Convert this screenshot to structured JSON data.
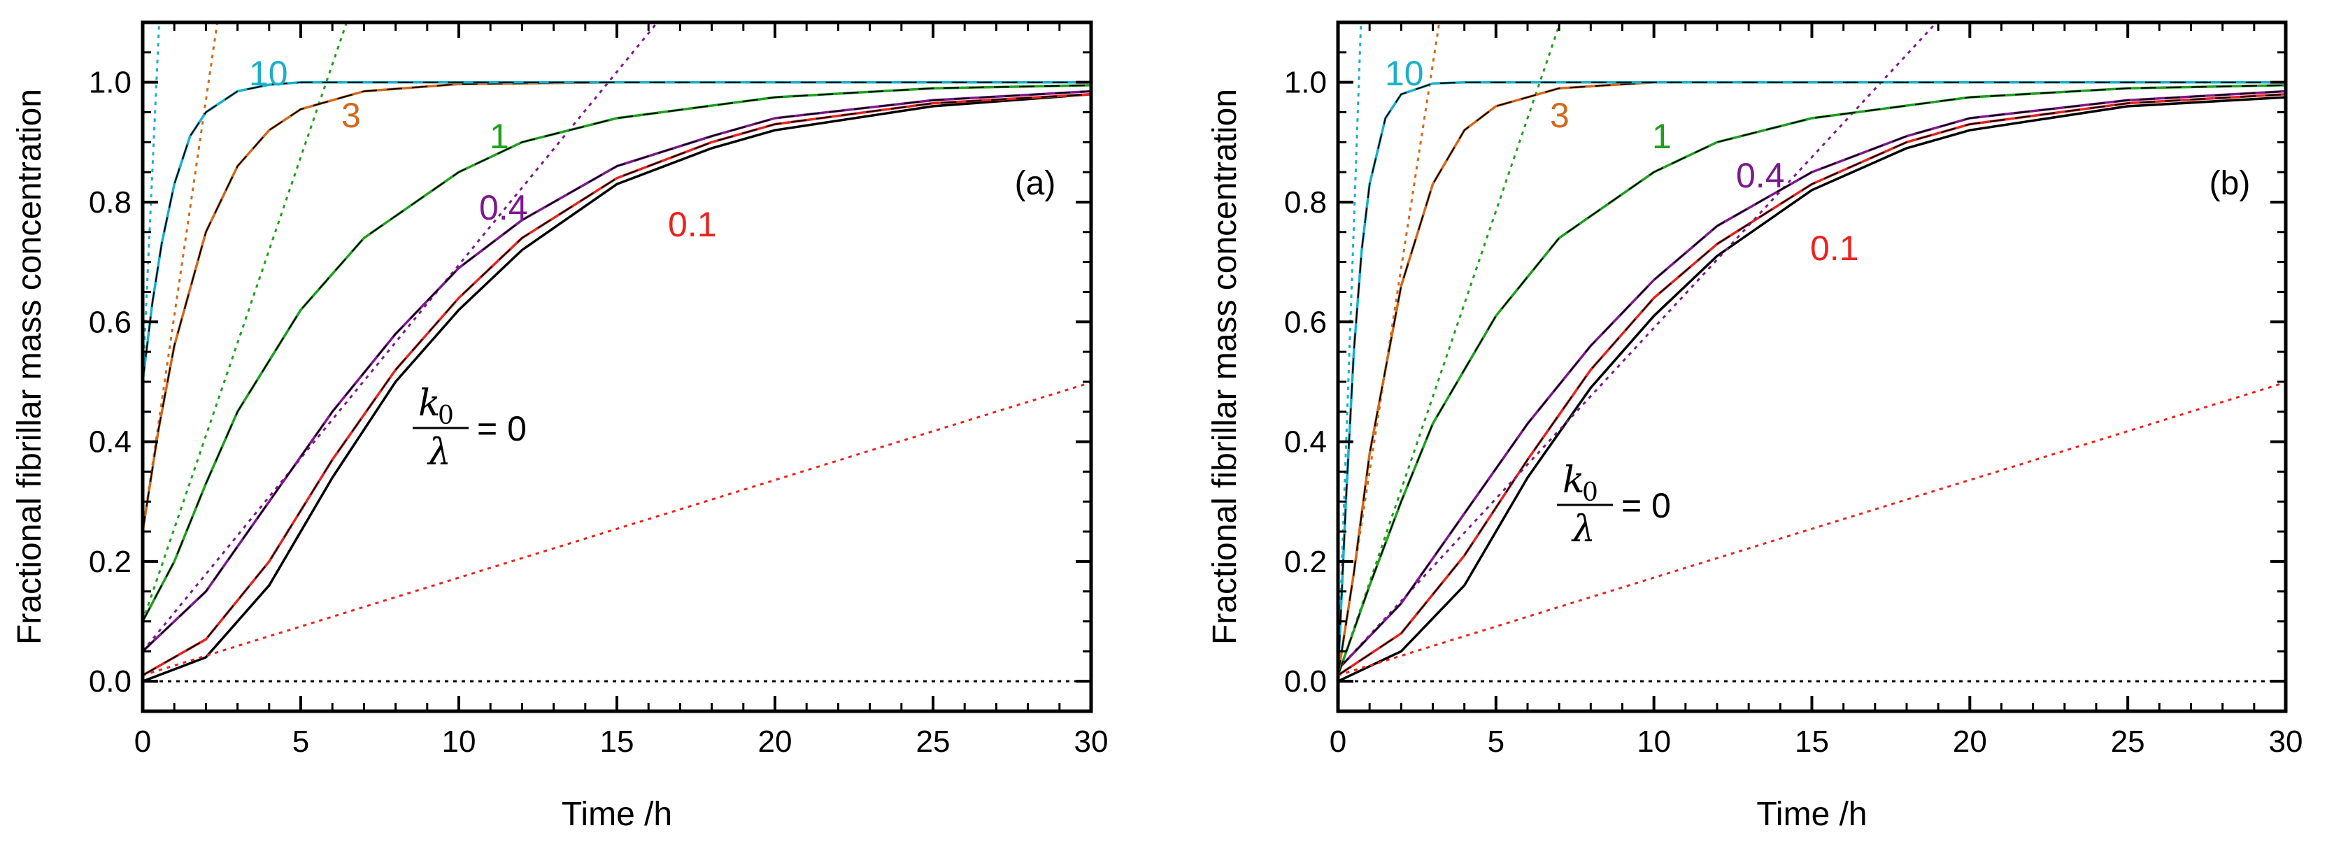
{
  "chart_data": [
    {
      "type": "line",
      "panel_label": "(a)",
      "xlabel": "Time /h",
      "ylabel": "Fractional fibrillar mass concentration",
      "xlim": [
        0,
        30
      ],
      "ylim": [
        -0.05,
        1.1
      ],
      "xticks": [
        "0",
        "5",
        "10",
        "15",
        "20",
        "25",
        "30"
      ],
      "yticks": [
        "0.0",
        "0.2",
        "0.4",
        "0.6",
        "0.8",
        "1.0"
      ],
      "k0_label": {
        "numerator": "k",
        "subscript": "0",
        "denominator": "λ",
        "equals": "= 0"
      },
      "series": [
        {
          "name": "0",
          "color": "#000000",
          "y0": 0.0,
          "values": [
            [
              0,
              0.0
            ],
            [
              2,
              0.04
            ],
            [
              4,
              0.16
            ],
            [
              6,
              0.34
            ],
            [
              8,
              0.5
            ],
            [
              10,
              0.62
            ],
            [
              12,
              0.72
            ],
            [
              15,
              0.83
            ],
            [
              18,
              0.89
            ],
            [
              20,
              0.92
            ],
            [
              25,
              0.96
            ],
            [
              30,
              0.98
            ]
          ]
        },
        {
          "name": "0.1",
          "color": "#e8231e",
          "y0": 0.01,
          "values": [
            [
              0,
              0.01
            ],
            [
              2,
              0.07
            ],
            [
              4,
              0.2
            ],
            [
              6,
              0.37
            ],
            [
              8,
              0.52
            ],
            [
              10,
              0.64
            ],
            [
              12,
              0.74
            ],
            [
              15,
              0.84
            ],
            [
              18,
              0.9
            ],
            [
              20,
              0.93
            ],
            [
              25,
              0.965
            ],
            [
              30,
              0.98
            ]
          ],
          "tangent_slope": 0.0163
        },
        {
          "name": "0.4",
          "color": "#7b1a8c",
          "y0": 0.05,
          "values": [
            [
              0,
              0.05
            ],
            [
              2,
              0.15
            ],
            [
              4,
              0.3
            ],
            [
              6,
              0.45
            ],
            [
              8,
              0.58
            ],
            [
              10,
              0.69
            ],
            [
              12,
              0.77
            ],
            [
              15,
              0.86
            ],
            [
              18,
              0.91
            ],
            [
              20,
              0.94
            ],
            [
              25,
              0.97
            ],
            [
              30,
              0.985
            ]
          ],
          "tangent_slope": 0.0645
        },
        {
          "name": "1",
          "color": "#1fa01f",
          "y0": 0.1,
          "values": [
            [
              0,
              0.1
            ],
            [
              1,
              0.2
            ],
            [
              2,
              0.33
            ],
            [
              3,
              0.45
            ],
            [
              5,
              0.62
            ],
            [
              7,
              0.74
            ],
            [
              10,
              0.85
            ],
            [
              12,
              0.9
            ],
            [
              15,
              0.94
            ],
            [
              20,
              0.975
            ],
            [
              25,
              0.99
            ],
            [
              30,
              0.995
            ]
          ],
          "tangent_slope": 0.155
        },
        {
          "name": "3",
          "color": "#d06a1e",
          "y0": 0.25,
          "values": [
            [
              0,
              0.25
            ],
            [
              0.5,
              0.42
            ],
            [
              1,
              0.56
            ],
            [
              2,
              0.75
            ],
            [
              3,
              0.86
            ],
            [
              4,
              0.92
            ],
            [
              5,
              0.955
            ],
            [
              7,
              0.985
            ],
            [
              10,
              0.997
            ],
            [
              15,
              1.0
            ],
            [
              30,
              1.0
            ]
          ],
          "tangent_slope": 0.36
        },
        {
          "name": "10",
          "color": "#1ab0c8",
          "y0": 0.5,
          "values": [
            [
              0,
              0.5
            ],
            [
              0.3,
              0.63
            ],
            [
              0.6,
              0.73
            ],
            [
              1,
              0.83
            ],
            [
              1.5,
              0.91
            ],
            [
              2,
              0.95
            ],
            [
              3,
              0.985
            ],
            [
              4,
              0.996
            ],
            [
              5,
              1.0
            ],
            [
              30,
              1.0
            ]
          ],
          "tangent_slope": 1.15
        }
      ]
    },
    {
      "type": "line",
      "panel_label": "(b)",
      "xlabel": "Time /h",
      "ylabel": "Fractional fibrillar mass concentration",
      "xlim": [
        0,
        30
      ],
      "ylim": [
        -0.05,
        1.1
      ],
      "xticks": [
        "0",
        "5",
        "10",
        "15",
        "20",
        "25",
        "30"
      ],
      "yticks": [
        "0.0",
        "0.2",
        "0.4",
        "0.6",
        "0.8",
        "1.0"
      ],
      "k0_label": {
        "numerator": "k",
        "subscript": "0",
        "denominator": "λ",
        "equals": "= 0"
      },
      "series": [
        {
          "name": "0",
          "color": "#000000",
          "y0": 0.0,
          "values": [
            [
              0,
              0.0
            ],
            [
              2,
              0.05
            ],
            [
              4,
              0.16
            ],
            [
              6,
              0.34
            ],
            [
              8,
              0.49
            ],
            [
              10,
              0.61
            ],
            [
              12,
              0.71
            ],
            [
              15,
              0.82
            ],
            [
              18,
              0.89
            ],
            [
              20,
              0.92
            ],
            [
              25,
              0.96
            ],
            [
              30,
              0.975
            ]
          ]
        },
        {
          "name": "0.1",
          "color": "#e8231e",
          "y0": 0.01,
          "values": [
            [
              0,
              0.01
            ],
            [
              2,
              0.08
            ],
            [
              4,
              0.21
            ],
            [
              6,
              0.37
            ],
            [
              8,
              0.52
            ],
            [
              10,
              0.64
            ],
            [
              12,
              0.73
            ],
            [
              15,
              0.83
            ],
            [
              18,
              0.9
            ],
            [
              20,
              0.93
            ],
            [
              25,
              0.965
            ],
            [
              30,
              0.98
            ]
          ],
          "tangent_slope": 0.0163
        },
        {
          "name": "0.4",
          "color": "#7b1a8c",
          "y0": 0.02,
          "values": [
            [
              0,
              0.02
            ],
            [
              2,
              0.13
            ],
            [
              4,
              0.28
            ],
            [
              6,
              0.43
            ],
            [
              8,
              0.56
            ],
            [
              10,
              0.67
            ],
            [
              12,
              0.76
            ],
            [
              15,
              0.85
            ],
            [
              18,
              0.91
            ],
            [
              20,
              0.94
            ],
            [
              25,
              0.97
            ],
            [
              30,
              0.985
            ]
          ],
          "tangent_slope": 0.057
        },
        {
          "name": "1",
          "color": "#1fa01f",
          "y0": 0.01,
          "values": [
            [
              0,
              0.01
            ],
            [
              1,
              0.16
            ],
            [
              2,
              0.3
            ],
            [
              3,
              0.43
            ],
            [
              5,
              0.61
            ],
            [
              7,
              0.74
            ],
            [
              10,
              0.85
            ],
            [
              12,
              0.9
            ],
            [
              15,
              0.94
            ],
            [
              20,
              0.975
            ],
            [
              25,
              0.99
            ],
            [
              30,
              0.995
            ]
          ],
          "tangent_slope": 0.155
        },
        {
          "name": "3",
          "color": "#d06a1e",
          "y0": 0.01,
          "values": [
            [
              0,
              0.01
            ],
            [
              0.5,
              0.18
            ],
            [
              1,
              0.38
            ],
            [
              2,
              0.66
            ],
            [
              3,
              0.83
            ],
            [
              4,
              0.92
            ],
            [
              5,
              0.96
            ],
            [
              7,
              0.99
            ],
            [
              10,
              1.0
            ],
            [
              30,
              1.0
            ]
          ],
          "tangent_slope": 0.34
        },
        {
          "name": "10",
          "color": "#1ab0c8",
          "y0": 0.01,
          "values": [
            [
              0,
              0.01
            ],
            [
              0.25,
              0.3
            ],
            [
              0.5,
              0.55
            ],
            [
              0.75,
              0.72
            ],
            [
              1,
              0.83
            ],
            [
              1.5,
              0.94
            ],
            [
              2,
              0.98
            ],
            [
              3,
              0.998
            ],
            [
              4,
              1.0
            ],
            [
              30,
              1.0
            ]
          ],
          "tangent_slope": 1.5
        }
      ]
    }
  ]
}
